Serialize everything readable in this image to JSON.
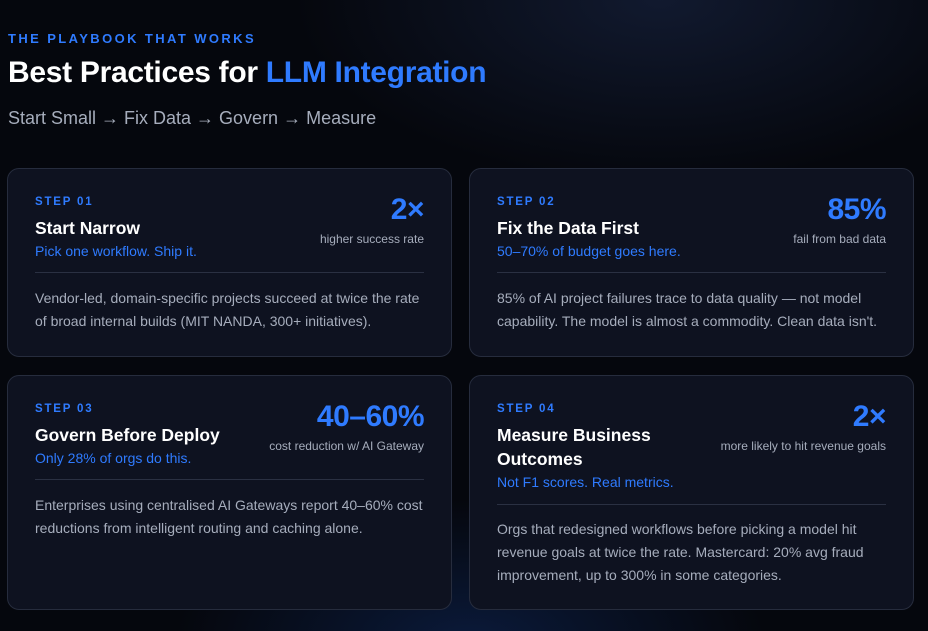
{
  "header": {
    "eyebrow": "THE PLAYBOOK THAT WORKS",
    "title_main": "Best Practices for ",
    "title_accent": "LLM Integration",
    "subtitle": "Start Small → Fix Data → Govern → Measure"
  },
  "colors": {
    "accent": "#2f7bff",
    "background": "#05070d",
    "card": "#0e1220",
    "muted_text": "#a6adbc"
  },
  "cards": [
    {
      "step": "STEP 01",
      "title": "Start Narrow",
      "tagline": "Pick one workflow. Ship it.",
      "stat": "2×",
      "stat_caption": "higher success rate",
      "body": "Vendor-led, domain-specific projects succeed at twice the rate of broad internal builds (MIT NANDA, 300+ initiatives)."
    },
    {
      "step": "STEP 02",
      "title": "Fix the Data First",
      "tagline": "50–70% of budget goes here.",
      "stat": "85%",
      "stat_caption": "fail from bad data",
      "body": "85% of AI project failures trace to data quality — not model capability. The model is almost a commodity. Clean data isn't."
    },
    {
      "step": "STEP 03",
      "title": "Govern Before Deploy",
      "tagline": "Only 28% of orgs do this.",
      "stat": "40–60%",
      "stat_caption": "cost reduction w/ AI Gateway",
      "body": "Enterprises using centralised AI Gateways report 40–60% cost reductions from intelligent routing and caching alone."
    },
    {
      "step": "STEP 04",
      "title": "Measure Business Outcomes",
      "tagline": "Not F1 scores. Real metrics.",
      "stat": "2×",
      "stat_caption": "more likely to hit revenue goals",
      "body": "Orgs that redesigned workflows before picking a model hit revenue goals at twice the rate. Mastercard: 20% avg fraud improvement, up to 300% in some categories."
    }
  ]
}
